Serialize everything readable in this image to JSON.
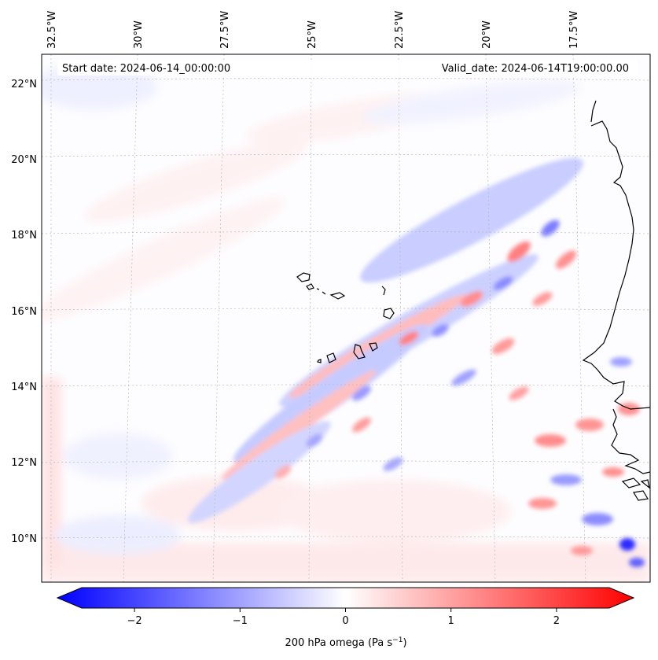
{
  "map": {
    "start_date_text": "Start date: 2024-06-14_00:00:00",
    "valid_date_text": "Valid_date: 2024-06-14T19:00:00.00",
    "lon_labels": [
      "32.5°W",
      "30°W",
      "27.5°W",
      "25°W",
      "22.5°W",
      "20°W",
      "17.5°W"
    ],
    "lat_labels": [
      "22°N",
      "20°N",
      "18°N",
      "16°N",
      "14°N",
      "12°N",
      "10°N"
    ],
    "field": "200 hPa omega",
    "colors": {
      "negative": "#0000ff",
      "zero": "#ffffff",
      "positive": "#ff0000",
      "coast": "#000000",
      "grid": "#b0b0b0"
    }
  },
  "colorbar": {
    "ticks": [
      "−2",
      "−1",
      "0",
      "1",
      "2"
    ],
    "tick_values": [
      -2,
      -1,
      0,
      1,
      2
    ],
    "range": [
      -2.5,
      2.5
    ],
    "label_main": "200 hPa omega (Pa s",
    "label_exp": "−1",
    "label_close": ")"
  }
}
